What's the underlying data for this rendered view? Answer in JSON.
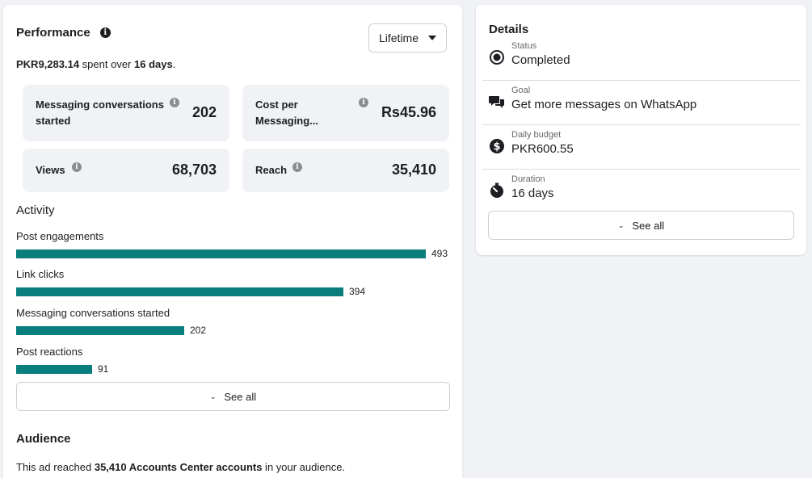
{
  "performance": {
    "title": "Performance",
    "timeframe": "Lifetime",
    "spent_amount": "PKR9,283.14",
    "spent_mid": " spent over ",
    "spent_days": "16 days",
    "spent_end": ".",
    "metrics": [
      {
        "label": "Messaging conversations started",
        "value": "202"
      },
      {
        "label": "Cost per Messaging...",
        "value": "Rs45.96"
      },
      {
        "label": "Views",
        "value": "68,703"
      },
      {
        "label": "Reach",
        "value": "35,410"
      }
    ]
  },
  "activity": {
    "title": "Activity",
    "rows": [
      {
        "label": "Post engagements",
        "value": 493,
        "value_text": "493"
      },
      {
        "label": "Link clicks",
        "value": 394,
        "value_text": "394"
      },
      {
        "label": "Messaging conversations started",
        "value": 202,
        "value_text": "202"
      },
      {
        "label": "Post reactions",
        "value": 91,
        "value_text": "91"
      }
    ],
    "bar_color": "#0a7d7d",
    "see_all": "See all"
  },
  "audience": {
    "title": "Audience",
    "text_start": "This ad reached ",
    "text_bold": "35,410 Accounts Center accounts",
    "text_end": " in your audience."
  },
  "details": {
    "title": "Details",
    "rows": [
      {
        "icon": "radio-selected-icon",
        "label": "Status",
        "value": "Completed"
      },
      {
        "icon": "chat-bubbles-icon",
        "label": "Goal",
        "value": "Get more messages on WhatsApp"
      },
      {
        "icon": "dollar-coin-icon",
        "label": "Daily budget",
        "value": "PKR600.55"
      },
      {
        "icon": "stopwatch-icon",
        "label": "Duration",
        "value": "16 days"
      }
    ],
    "see_all": "See all"
  }
}
